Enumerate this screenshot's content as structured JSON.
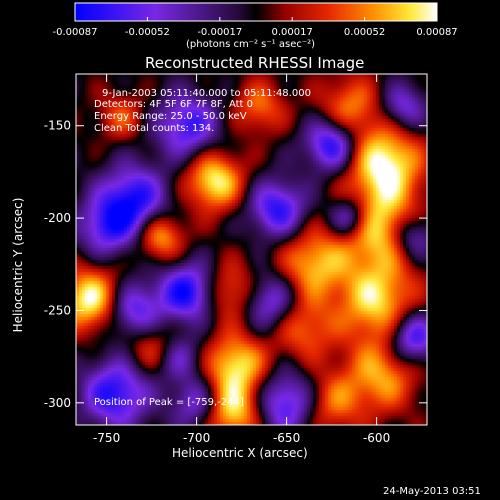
{
  "chart_data": {
    "type": "heatmap",
    "title": "Reconstructed RHESSI Image",
    "xlabel": "Heliocentric X (arcsec)",
    "ylabel": "Heliocentric Y (arcsec)",
    "xlim": [
      -767,
      -572
    ],
    "ylim": [
      -312,
      -122
    ],
    "x_ticks": [
      -750,
      -700,
      -650,
      -600
    ],
    "y_ticks": [
      -150,
      -200,
      -250,
      -300
    ],
    "colorbar": {
      "range": [
        -0.00087,
        0.00087
      ],
      "ticks": [
        "-0.00087",
        "-0.00052",
        "-0.00017",
        "0.00017",
        "0.00052",
        "0.00087"
      ],
      "unit_label": "(photons cm⁻² s⁻¹ asec⁻²)"
    },
    "overlay": {
      "time_range": "9-Jan-2003 05:11:40.000 to 05:11:48.000",
      "detectors": "Detectors: 4F 5F 6F 7F 8F, Att 0",
      "energy": "Energy Range: 25.0 - 50.0 keV",
      "method_counts": "Clean      Total counts: 134.",
      "peak": "Position of Peak = [-759,-244]"
    },
    "blobs": [
      {
        "x": -595,
        "y": -170,
        "amp": 1.0,
        "s": 14
      },
      {
        "x": -598,
        "y": -205,
        "amp": 0.9,
        "s": 16
      },
      {
        "x": -600,
        "y": -245,
        "amp": 0.85,
        "s": 15
      },
      {
        "x": -597,
        "y": -285,
        "amp": 0.7,
        "s": 14
      },
      {
        "x": -615,
        "y": -140,
        "amp": 0.6,
        "s": 12
      },
      {
        "x": -635,
        "y": -225,
        "amp": 0.75,
        "s": 13
      },
      {
        "x": -640,
        "y": -260,
        "amp": 0.55,
        "s": 12
      },
      {
        "x": -690,
        "y": -180,
        "amp": 0.95,
        "s": 11
      },
      {
        "x": -680,
        "y": -240,
        "amp": 0.6,
        "s": 11
      },
      {
        "x": -678,
        "y": -280,
        "amp": 0.9,
        "s": 12
      },
      {
        "x": -680,
        "y": -305,
        "amp": 0.85,
        "s": 11
      },
      {
        "x": -720,
        "y": -210,
        "amp": 0.75,
        "s": 9
      },
      {
        "x": -665,
        "y": -140,
        "amp": 0.55,
        "s": 10
      },
      {
        "x": -759,
        "y": -244,
        "amp": 1.0,
        "s": 12
      },
      {
        "x": -725,
        "y": -270,
        "amp": 0.5,
        "s": 10
      },
      {
        "x": -742,
        "y": -145,
        "amp": 0.45,
        "s": 9
      },
      {
        "x": -625,
        "y": -300,
        "amp": 0.55,
        "s": 12
      },
      {
        "x": -705,
        "y": -150,
        "amp": -0.8,
        "s": 12
      },
      {
        "x": -735,
        "y": -190,
        "amp": -0.9,
        "s": 13
      },
      {
        "x": -750,
        "y": -205,
        "amp": -0.7,
        "s": 11
      },
      {
        "x": -705,
        "y": -240,
        "amp": -0.95,
        "s": 11
      },
      {
        "x": -735,
        "y": -250,
        "amp": -0.75,
        "s": 11
      },
      {
        "x": -745,
        "y": -295,
        "amp": -0.9,
        "s": 13
      },
      {
        "x": -655,
        "y": -195,
        "amp": -0.85,
        "s": 11
      },
      {
        "x": -660,
        "y": -245,
        "amp": -0.7,
        "s": 11
      },
      {
        "x": -650,
        "y": -300,
        "amp": -0.8,
        "s": 12
      },
      {
        "x": -625,
        "y": -160,
        "amp": -0.95,
        "s": 10
      },
      {
        "x": -615,
        "y": -200,
        "amp": -0.8,
        "s": 8
      },
      {
        "x": -580,
        "y": -210,
        "amp": -0.75,
        "s": 9
      },
      {
        "x": -580,
        "y": -265,
        "amp": -0.9,
        "s": 10
      },
      {
        "x": -585,
        "y": -140,
        "amp": -0.6,
        "s": 9
      },
      {
        "x": -700,
        "y": -300,
        "amp": -0.6,
        "s": 10
      },
      {
        "x": -710,
        "y": -275,
        "amp": -0.5,
        "s": 9
      }
    ]
  },
  "footer": {
    "date": "24-May-2013 03:51"
  }
}
